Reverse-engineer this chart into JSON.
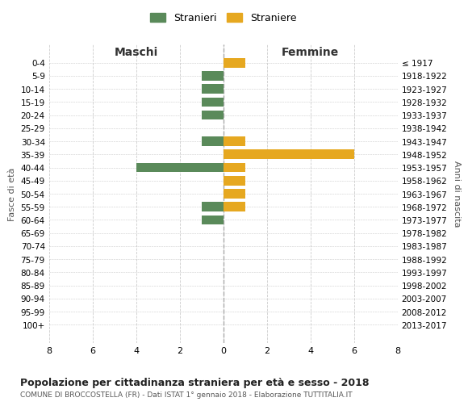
{
  "age_groups": [
    "0-4",
    "5-9",
    "10-14",
    "15-19",
    "20-24",
    "25-29",
    "30-34",
    "35-39",
    "40-44",
    "45-49",
    "50-54",
    "55-59",
    "60-64",
    "65-69",
    "70-74",
    "75-79",
    "80-84",
    "85-89",
    "90-94",
    "95-99",
    "100+"
  ],
  "birth_years": [
    "2013-2017",
    "2008-2012",
    "2003-2007",
    "1998-2002",
    "1993-1997",
    "1988-1992",
    "1983-1987",
    "1978-1982",
    "1973-1977",
    "1968-1972",
    "1963-1967",
    "1958-1962",
    "1953-1957",
    "1948-1952",
    "1943-1947",
    "1938-1942",
    "1933-1937",
    "1928-1932",
    "1923-1927",
    "1918-1922",
    "≤ 1917"
  ],
  "stranieri": [
    0,
    1,
    1,
    1,
    1,
    0,
    1,
    0,
    4,
    0,
    0,
    1,
    1,
    0,
    0,
    0,
    0,
    0,
    0,
    0,
    0
  ],
  "straniere": [
    1,
    0,
    0,
    0,
    0,
    0,
    1,
    6,
    1,
    1,
    1,
    1,
    0,
    0,
    0,
    0,
    0,
    0,
    0,
    0,
    0
  ],
  "stranieri_color": "#5a8a5a",
  "straniere_color": "#e6a820",
  "xlim": 8,
  "title": "Popolazione per cittadinanza straniera per età e sesso - 2018",
  "subtitle": "COMUNE DI BROCCOSTELLA (FR) - Dati ISTAT 1° gennaio 2018 - Elaborazione TUTTITALIA.IT",
  "legend_stranieri": "Stranieri",
  "legend_straniere": "Straniere",
  "label_maschi": "Maschi",
  "label_femmine": "Femmine",
  "label_fasce": "Fasce di età",
  "label_anni": "Anni di nascita",
  "background_color": "#ffffff",
  "grid_color": "#cccccc"
}
